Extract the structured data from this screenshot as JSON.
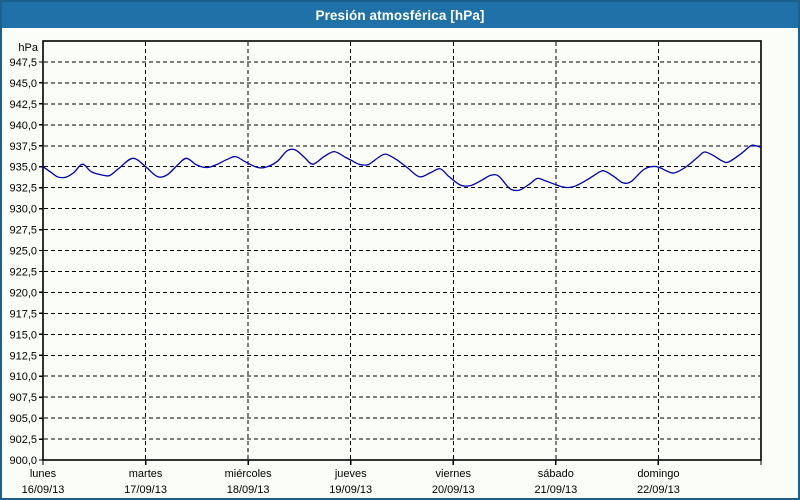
{
  "window": {
    "title": "Presión atmosférica [hPa]"
  },
  "colors": {
    "frame": "#1d5f8f",
    "titlebar_bg": "#2071a8",
    "titlebar_text": "#ffffff",
    "plot_border": "#000000",
    "grid": "#000000",
    "line": "#0000aa",
    "background": "#fbfdf8"
  },
  "chart_data": {
    "type": "line",
    "title": "Presión atmosférica [hPa]",
    "xlabel": "",
    "ylabel": "hPa",
    "grid": "dashed-black",
    "legend": "none",
    "y_axis": {
      "unit_label": "hPa",
      "min": 900,
      "max": 950,
      "tick_step": 2.5,
      "tick_labels": [
        "947,5",
        "945,0",
        "942,5",
        "940,0",
        "937,5",
        "935,0",
        "932,5",
        "930,0",
        "927,5",
        "925,0",
        "922,5",
        "920,0",
        "917,5",
        "915,0",
        "912,5",
        "910,0",
        "907,5",
        "905,0",
        "902,5",
        "900,0"
      ]
    },
    "x_axis": {
      "days": [
        {
          "name": "lunes",
          "date": "16/09/13"
        },
        {
          "name": "martes",
          "date": "17/09/13"
        },
        {
          "name": "miércoles",
          "date": "18/09/13"
        },
        {
          "name": "jueves",
          "date": "19/09/13"
        },
        {
          "name": "viernes",
          "date": "20/09/13"
        },
        {
          "name": "sábado",
          "date": "21/09/13"
        },
        {
          "name": "domingo",
          "date": "22/09/13"
        }
      ]
    },
    "series": [
      {
        "name": "Presión atmosférica",
        "color": "#0000aa",
        "x_days": [
          0.0,
          0.07,
          0.14,
          0.22,
          0.3,
          0.385,
          0.47,
          0.58,
          0.65,
          0.74,
          0.875,
          1.0,
          1.08,
          1.14,
          1.22,
          1.32,
          1.4,
          1.5,
          1.6,
          1.7,
          1.8,
          1.88,
          1.97,
          2.07,
          2.16,
          2.28,
          2.38,
          2.46,
          2.55,
          2.63,
          2.74,
          2.84,
          2.95,
          3.0,
          3.08,
          3.17,
          3.27,
          3.34,
          3.44,
          3.55,
          3.67,
          3.78,
          3.87,
          3.96,
          4.07,
          4.17,
          4.28,
          4.36,
          4.44,
          4.55,
          4.64,
          4.74,
          4.82,
          4.9,
          5.0,
          5.08,
          5.17,
          5.3,
          5.43,
          5.48,
          5.57,
          5.65,
          5.73,
          5.85,
          5.93,
          6.0,
          6.08,
          6.15,
          6.26,
          6.38,
          6.45,
          6.54,
          6.62,
          6.68,
          6.8,
          6.9,
          6.95,
          7.0
        ],
        "values_hpa": [
          935.0,
          934.4,
          933.8,
          933.75,
          934.3,
          935.3,
          934.4,
          934.0,
          933.95,
          934.8,
          936.0,
          935.0,
          934.1,
          933.75,
          934.1,
          935.3,
          936.0,
          935.2,
          934.9,
          935.3,
          935.9,
          936.2,
          935.6,
          935.0,
          934.9,
          935.6,
          936.9,
          937.0,
          936.1,
          935.3,
          936.2,
          936.8,
          936.1,
          935.8,
          935.3,
          935.25,
          936.1,
          936.5,
          935.9,
          934.9,
          933.8,
          934.3,
          934.75,
          933.8,
          932.8,
          932.75,
          933.4,
          933.95,
          933.9,
          932.4,
          932.2,
          932.9,
          933.6,
          933.3,
          932.85,
          932.55,
          932.6,
          933.4,
          934.4,
          934.45,
          933.8,
          933.1,
          933.2,
          934.6,
          935.0,
          934.95,
          934.5,
          934.25,
          934.9,
          936.1,
          936.75,
          936.3,
          935.7,
          935.55,
          936.5,
          937.5,
          937.5,
          937.3
        ]
      }
    ]
  }
}
